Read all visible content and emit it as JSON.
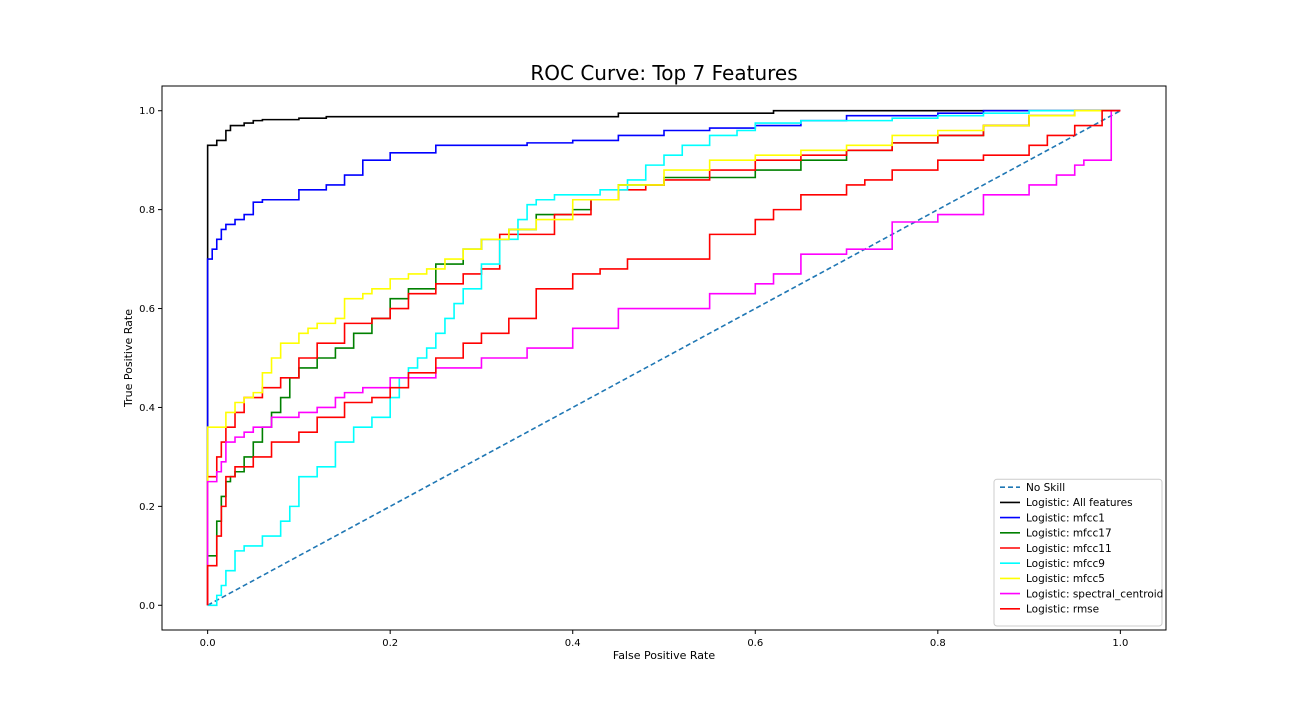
{
  "chart_data": {
    "type": "line",
    "title": "ROC Curve: Top 7 Features",
    "xlabel": "False Positive Rate",
    "ylabel": "True Positive Rate",
    "xlim": [
      -0.05,
      1.05
    ],
    "ylim": [
      -0.05,
      1.05
    ],
    "xticks": [
      "0.0",
      "0.2",
      "0.4",
      "0.6",
      "0.8",
      "1.0"
    ],
    "yticks": [
      "0.0",
      "0.2",
      "0.4",
      "0.6",
      "0.8",
      "1.0"
    ],
    "xtick_values": [
      0,
      0.2,
      0.4,
      0.6,
      0.8,
      1.0
    ],
    "ytick_values": [
      0,
      0.2,
      0.4,
      0.6,
      0.8,
      1.0
    ],
    "grid": false,
    "legend_position": "lower-right",
    "series": [
      {
        "name": "No Skill",
        "color": "#1f77b4",
        "dash": true,
        "x": [
          0,
          1
        ],
        "y": [
          0,
          1
        ]
      },
      {
        "name": "Logistic: All features",
        "color": "#000000",
        "x": [
          0,
          0,
          0.01,
          0.02,
          0.025,
          0.04,
          0.05,
          0.06,
          0.1,
          0.13,
          0.2,
          0.3,
          0.45,
          0.54,
          0.62,
          0.77,
          0.85,
          0.93,
          1.0
        ],
        "y": [
          0,
          0.93,
          0.93,
          0.94,
          0.96,
          0.97,
          0.975,
          0.98,
          0.982,
          0.985,
          0.988,
          0.988,
          0.988,
          0.995,
          0.995,
          1.0,
          1.0,
          1.0,
          1.0
        ]
      },
      {
        "name": "Logistic: mfcc1",
        "color": "#0000ff",
        "x": [
          0,
          0,
          0.005,
          0.01,
          0.015,
          0.02,
          0.03,
          0.04,
          0.05,
          0.06,
          0.1,
          0.13,
          0.15,
          0.17,
          0.2,
          0.25,
          0.3,
          0.35,
          0.4,
          0.45,
          0.5,
          0.55,
          0.6,
          0.65,
          0.7,
          0.75,
          0.8,
          0.85,
          0.9,
          0.93,
          0.95,
          1.0
        ],
        "y": [
          0,
          0.68,
          0.7,
          0.72,
          0.74,
          0.76,
          0.77,
          0.78,
          0.79,
          0.815,
          0.82,
          0.84,
          0.85,
          0.87,
          0.9,
          0.915,
          0.93,
          0.93,
          0.935,
          0.94,
          0.95,
          0.96,
          0.965,
          0.97,
          0.98,
          0.99,
          0.99,
          0.995,
          1.0,
          1.0,
          1.0,
          1.0
        ]
      },
      {
        "name": "Logistic: mfcc17",
        "color": "#008000",
        "x": [
          0,
          0,
          0.01,
          0.015,
          0.02,
          0.025,
          0.03,
          0.04,
          0.05,
          0.06,
          0.07,
          0.08,
          0.09,
          0.1,
          0.12,
          0.14,
          0.16,
          0.18,
          0.2,
          0.22,
          0.25,
          0.28,
          0.3,
          0.33,
          0.36,
          0.4,
          0.42,
          0.45,
          0.5,
          0.55,
          0.6,
          0.65,
          0.7,
          0.75,
          0.8,
          0.85,
          0.9,
          0.95,
          1.0
        ],
        "y": [
          0,
          0.09,
          0.1,
          0.17,
          0.22,
          0.25,
          0.26,
          0.27,
          0.3,
          0.33,
          0.36,
          0.39,
          0.42,
          0.46,
          0.48,
          0.5,
          0.52,
          0.55,
          0.58,
          0.62,
          0.64,
          0.69,
          0.72,
          0.74,
          0.76,
          0.79,
          0.8,
          0.82,
          0.85,
          0.865,
          0.865,
          0.88,
          0.9,
          0.92,
          0.935,
          0.95,
          0.97,
          0.99,
          1.0
        ]
      },
      {
        "name": "Logistic: mfcc11",
        "color": "#ff0000",
        "x": [
          0,
          0,
          0.01,
          0.015,
          0.02,
          0.03,
          0.04,
          0.05,
          0.06,
          0.08,
          0.1,
          0.12,
          0.15,
          0.18,
          0.2,
          0.22,
          0.25,
          0.28,
          0.3,
          0.32,
          0.35,
          0.38,
          0.42,
          0.45,
          0.48,
          0.5,
          0.55,
          0.6,
          0.65,
          0.7,
          0.75,
          0.8,
          0.85,
          0.9,
          0.95,
          1.0
        ],
        "y": [
          0,
          0.24,
          0.26,
          0.3,
          0.33,
          0.36,
          0.39,
          0.42,
          0.42,
          0.44,
          0.46,
          0.5,
          0.53,
          0.57,
          0.58,
          0.6,
          0.63,
          0.65,
          0.67,
          0.68,
          0.75,
          0.75,
          0.79,
          0.82,
          0.84,
          0.85,
          0.86,
          0.88,
          0.9,
          0.91,
          0.92,
          0.935,
          0.95,
          0.97,
          0.99,
          1.0
        ]
      },
      {
        "name": "Logistic: mfcc9",
        "color": "#00ffff",
        "x": [
          0,
          0.01,
          0.015,
          0.02,
          0.03,
          0.04,
          0.06,
          0.08,
          0.09,
          0.1,
          0.12,
          0.14,
          0.16,
          0.18,
          0.2,
          0.21,
          0.22,
          0.23,
          0.24,
          0.25,
          0.26,
          0.27,
          0.28,
          0.3,
          0.32,
          0.34,
          0.35,
          0.36,
          0.38,
          0.4,
          0.43,
          0.46,
          0.48,
          0.5,
          0.52,
          0.55,
          0.58,
          0.6,
          0.65,
          0.7,
          0.75,
          0.8,
          0.85,
          0.9,
          0.95,
          1.0
        ],
        "y": [
          0,
          0,
          0.02,
          0.04,
          0.07,
          0.11,
          0.12,
          0.14,
          0.17,
          0.2,
          0.26,
          0.28,
          0.33,
          0.36,
          0.38,
          0.42,
          0.46,
          0.48,
          0.5,
          0.52,
          0.55,
          0.58,
          0.61,
          0.64,
          0.69,
          0.74,
          0.78,
          0.81,
          0.82,
          0.83,
          0.83,
          0.84,
          0.86,
          0.89,
          0.91,
          0.93,
          0.95,
          0.96,
          0.975,
          0.98,
          0.98,
          0.985,
          0.99,
          0.995,
          1.0,
          1.0
        ]
      },
      {
        "name": "Logistic: mfcc5",
        "color": "#ffff00",
        "x": [
          0,
          0,
          0.02,
          0.03,
          0.04,
          0.05,
          0.06,
          0.07,
          0.08,
          0.1,
          0.11,
          0.12,
          0.14,
          0.15,
          0.17,
          0.18,
          0.2,
          0.22,
          0.24,
          0.26,
          0.28,
          0.3,
          0.33,
          0.36,
          0.4,
          0.45,
          0.5,
          0.55,
          0.6,
          0.65,
          0.7,
          0.75,
          0.8,
          0.85,
          0.9,
          0.95,
          1.0
        ],
        "y": [
          0,
          0.35,
          0.36,
          0.39,
          0.41,
          0.42,
          0.43,
          0.47,
          0.5,
          0.53,
          0.55,
          0.56,
          0.57,
          0.58,
          0.62,
          0.63,
          0.64,
          0.66,
          0.67,
          0.68,
          0.7,
          0.72,
          0.74,
          0.76,
          0.78,
          0.82,
          0.85,
          0.88,
          0.9,
          0.91,
          0.92,
          0.93,
          0.95,
          0.96,
          0.97,
          0.99,
          1.0
        ]
      },
      {
        "name": "Logistic: spectral_centroid",
        "color": "#ff00ff",
        "x": [
          0,
          0,
          0.01,
          0.015,
          0.02,
          0.03,
          0.04,
          0.05,
          0.07,
          0.1,
          0.12,
          0.14,
          0.15,
          0.17,
          0.2,
          0.25,
          0.3,
          0.35,
          0.4,
          0.45,
          0.5,
          0.55,
          0.6,
          0.62,
          0.65,
          0.7,
          0.75,
          0.8,
          0.85,
          0.9,
          0.93,
          0.95,
          0.96,
          0.97,
          0.99,
          0.99,
          1.0
        ],
        "y": [
          0,
          0.24,
          0.25,
          0.27,
          0.29,
          0.33,
          0.34,
          0.35,
          0.36,
          0.38,
          0.39,
          0.4,
          0.42,
          0.43,
          0.44,
          0.46,
          0.48,
          0.5,
          0.52,
          0.56,
          0.6,
          0.6,
          0.63,
          0.65,
          0.67,
          0.71,
          0.72,
          0.775,
          0.79,
          0.83,
          0.85,
          0.87,
          0.89,
          0.9,
          0.9,
          0.93,
          1.0
        ]
      },
      {
        "name": "Logistic: rmse",
        "color": "#ff0000",
        "x": [
          0,
          0,
          0.01,
          0.015,
          0.02,
          0.03,
          0.05,
          0.07,
          0.1,
          0.12,
          0.15,
          0.18,
          0.2,
          0.22,
          0.25,
          0.28,
          0.3,
          0.33,
          0.36,
          0.4,
          0.43,
          0.46,
          0.5,
          0.55,
          0.6,
          0.62,
          0.65,
          0.7,
          0.72,
          0.75,
          0.78,
          0.8,
          0.85,
          0.9,
          0.92,
          0.95,
          0.98,
          1.0
        ],
        "y": [
          0,
          0.03,
          0.08,
          0.14,
          0.2,
          0.26,
          0.28,
          0.3,
          0.33,
          0.35,
          0.38,
          0.41,
          0.42,
          0.44,
          0.47,
          0.5,
          0.53,
          0.55,
          0.58,
          0.64,
          0.67,
          0.68,
          0.7,
          0.7,
          0.75,
          0.78,
          0.8,
          0.83,
          0.85,
          0.86,
          0.88,
          0.88,
          0.9,
          0.91,
          0.93,
          0.95,
          0.97,
          1.0
        ]
      }
    ]
  }
}
